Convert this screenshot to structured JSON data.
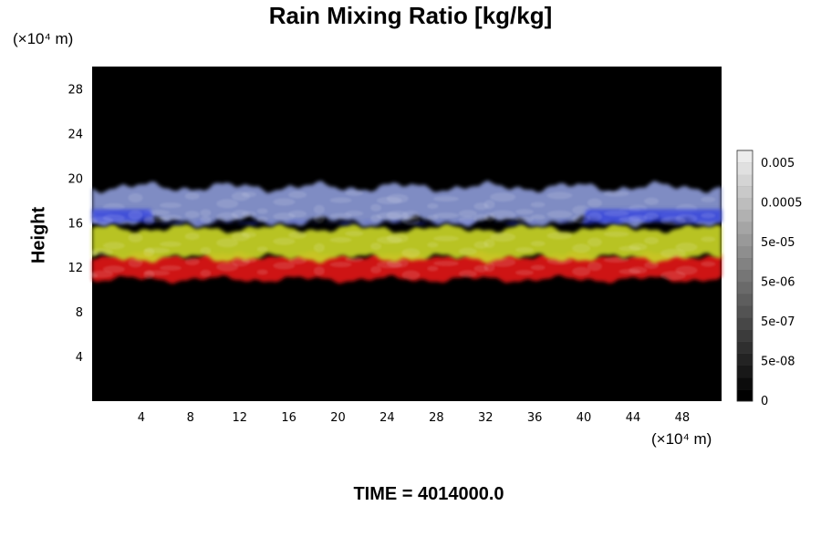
{
  "chart_data": {
    "type": "heatmap",
    "title": "Rain Mixing Ratio [kg/kg]",
    "ylabel": "Height",
    "x_unit": "(×10⁴ m)",
    "y_unit": "(×10⁴ m)",
    "xlim": [
      0,
      51.2
    ],
    "ylim": [
      0,
      30
    ],
    "x_ticks": [
      4,
      8,
      12,
      16,
      20,
      24,
      28,
      32,
      36,
      40,
      44,
      48
    ],
    "y_ticks": [
      4,
      8,
      12,
      16,
      20,
      24,
      28
    ],
    "background_color": "#000000",
    "layers": [
      {
        "color": "#e01515",
        "bottom": 10.5,
        "top": 13.5
      },
      {
        "color": "#c8d428",
        "bottom": 12.3,
        "top": 16.0
      },
      {
        "color": "#8a98d4",
        "bottom": 15.5,
        "top": 19.8
      },
      {
        "color": "#2f3ee0",
        "bottom": 15.8,
        "top": 17.2
      }
    ],
    "colorbar": {
      "levels": 21,
      "labels": [
        "0.005",
        "0.0005",
        "5e-05",
        "5e-06",
        "5e-07",
        "5e-08",
        "0"
      ],
      "color_min": "#000000",
      "color_max": "#ececec"
    },
    "time_label": "TIME",
    "time_value": "4014000.0"
  }
}
